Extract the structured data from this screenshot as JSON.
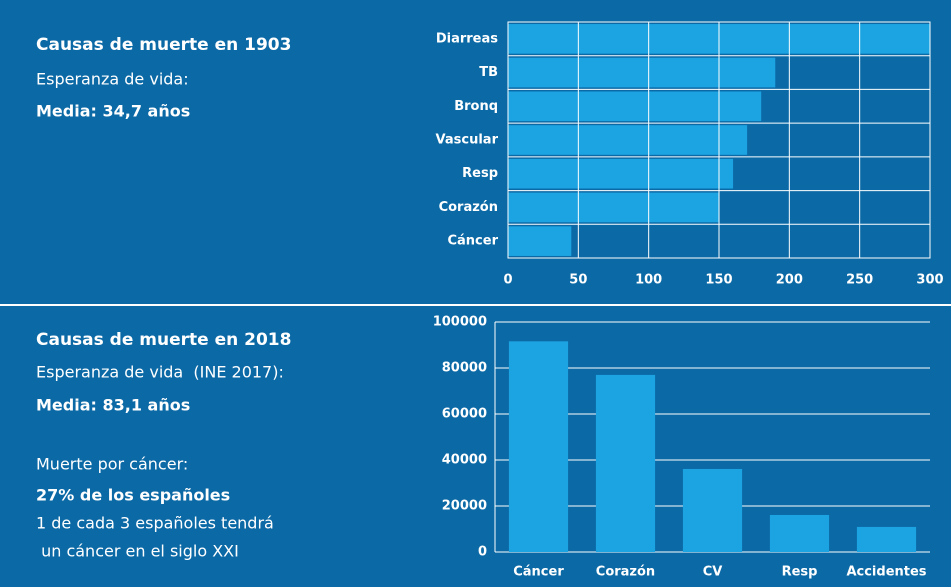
{
  "panels": [
    {
      "title": "Causas de muerte en 1903",
      "lines": [
        "Esperanza de vida:",
        "Media: 34,7 años"
      ]
    },
    {
      "title": "Causas de muerte en 2018",
      "lines": [
        "Esperanza de vida  (INE 2017):",
        "Media: 83,1 años",
        "Muerte por cáncer:",
        "27% de los españoles",
        "1 de cada 3 españoles tendrá",
        " un cáncer en el siglo XXI"
      ]
    }
  ],
  "chart_data": [
    {
      "type": "bar",
      "orientation": "horizontal",
      "categories": [
        "Diarreas",
        "TB",
        "Bronq",
        "Vascular",
        "Resp",
        "Corazón",
        "Cáncer"
      ],
      "values": [
        300,
        190,
        180,
        170,
        160,
        150,
        45
      ],
      "color": "#1ba3e2",
      "xlim": [
        0,
        300
      ],
      "xticks": [
        0,
        50,
        100,
        150,
        200,
        250,
        300
      ],
      "grid": true
    },
    {
      "type": "bar",
      "orientation": "vertical",
      "categories": [
        "Cáncer",
        "Corazón",
        "CV",
        "Resp",
        "Accidentes"
      ],
      "values": [
        91600,
        77000,
        36100,
        16100,
        10900
      ],
      "color": "#1ba3e2",
      "ylim": [
        0,
        100000
      ],
      "yticks": [
        0,
        20000,
        40000,
        60000,
        80000,
        100000
      ],
      "grid": true
    }
  ]
}
